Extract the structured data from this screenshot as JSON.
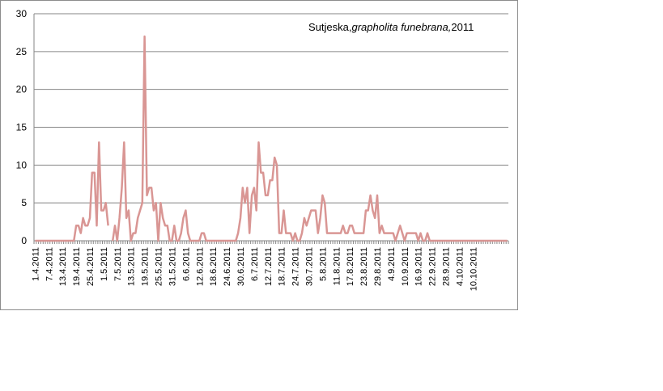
{
  "chart_data": {
    "type": "line",
    "title_parts": [
      "Sutjeska,",
      "grapholita funebrana,",
      "2011"
    ],
    "xlabel": "",
    "ylabel": "",
    "ylim": [
      0,
      30
    ],
    "yticks": [
      0,
      5,
      10,
      15,
      20,
      25,
      30
    ],
    "grid": true,
    "legend": "none",
    "line_color": "#d99694",
    "x_tick_labels": [
      "1.4.2011",
      "7.4.2011",
      "13.4.2011",
      "19.4.2011",
      "25.4.2011",
      "1.5.2011",
      "7.5.2011",
      "13.5.2011",
      "19.5.2011",
      "25.5.2011",
      "31.5.2011",
      "6.6.2011",
      "12.6.2011",
      "18.6.2011",
      "24.6.2011",
      "30.6.2011",
      "6.7.2011",
      "12.7.2011",
      "18.7.2011",
      "24.7.2011",
      "30.7.2011",
      "5.8.2011",
      "11.8.2011",
      "17.8.2011",
      "23.8.2011",
      "29.8.2011",
      "4.9.2011",
      "10.9.2011",
      "16.9.2011",
      "22.9.2011",
      "28.9.2011",
      "4.10.2011",
      "10.10.2011"
    ],
    "x_start": "1.4.2011",
    "values": [
      0,
      0,
      0,
      0,
      0,
      0,
      0,
      0,
      0,
      0,
      0,
      0,
      0,
      0,
      0,
      0,
      0,
      0,
      2,
      2,
      1,
      3,
      2,
      2,
      3,
      9,
      9,
      2,
      13,
      4,
      4,
      5,
      2,
      null,
      0,
      2,
      0,
      3,
      7,
      13,
      3,
      4,
      0,
      1,
      1,
      3,
      4,
      5,
      27,
      6,
      7,
      7,
      4,
      5,
      0,
      5,
      3,
      2,
      2,
      0,
      0,
      2,
      0,
      0,
      1,
      3,
      4,
      1,
      0,
      0,
      0,
      0,
      0,
      1,
      1,
      0,
      0,
      0,
      0,
      0,
      0,
      0,
      0,
      0,
      0,
      0,
      0,
      0,
      0,
      1,
      3,
      7,
      5,
      7,
      1,
      6,
      7,
      4,
      13,
      9,
      9,
      6,
      6,
      8,
      8,
      11,
      10,
      1,
      1,
      4,
      1,
      1,
      1,
      0,
      1,
      0,
      0,
      1,
      3,
      2,
      3,
      4,
      4,
      4,
      1,
      3,
      6,
      5,
      1,
      1,
      1,
      1,
      1,
      1,
      1,
      2,
      1,
      1,
      2,
      2,
      1,
      1,
      1,
      1,
      1,
      4,
      4,
      6,
      4,
      3,
      6,
      1,
      2,
      1,
      1,
      1,
      1,
      1,
      0,
      1,
      2,
      1,
      0,
      1,
      1,
      1,
      1,
      1,
      0,
      1,
      0,
      0,
      1,
      0,
      0,
      0,
      0,
      0,
      0,
      0,
      0,
      0,
      0,
      0,
      0,
      0,
      0,
      0,
      0,
      0,
      0,
      0,
      0,
      0,
      0,
      0,
      0,
      0,
      0,
      0,
      0,
      0,
      0,
      0,
      0,
      0,
      0,
      0
    ]
  }
}
